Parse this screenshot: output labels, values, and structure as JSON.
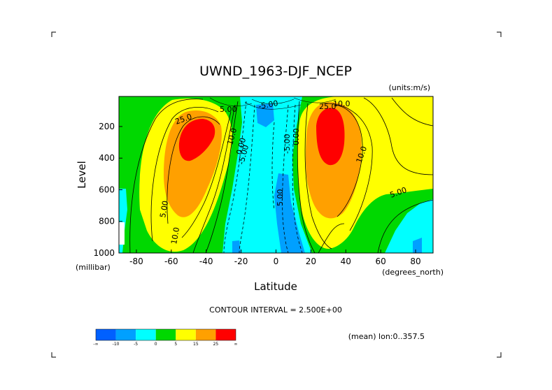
{
  "chart_data": {
    "type": "heatmap",
    "title": "UWND_1963-DJF_NCEP",
    "units": "(units:m/s)",
    "xlabel": "Latitude",
    "xunits": "(degrees_north)",
    "ylabel": "Level",
    "yunits": "(millibar)",
    "xlim": [
      -90,
      90
    ],
    "ylim": [
      1000,
      10
    ],
    "x_ticks": [
      "-80",
      "-60",
      "-40",
      "-20",
      "0",
      "20",
      "40",
      "60",
      "80"
    ],
    "y_ticks": [
      "200",
      "400",
      "600",
      "800",
      "1000"
    ],
    "contour_interval_text": "CONTOUR INTERVAL = 2.500E+00",
    "mean_text": "(mean) lon:0..357.5",
    "colorbar": {
      "tick_labels": [
        "-∞",
        "-10",
        "-5",
        "0",
        "5",
        "15",
        "25",
        "∞"
      ],
      "colors": [
        "#0060ff",
        "#00a0ff",
        "#00ffff",
        "#00d800",
        "#ffff00",
        "#ffa000",
        "#ff0000"
      ]
    },
    "contour_labels": [
      "25.0",
      "25.0",
      "10.0",
      "10.0",
      "10.0",
      "10.0",
      "5.00",
      "5.00",
      "5.00",
      "5.00",
      "0.00",
      "0.00",
      "-5.00",
      "-5.00",
      "-5.00"
    ],
    "jets": [
      {
        "lat": -50,
        "level": 250,
        "max": 28
      },
      {
        "lat": 30,
        "level": 200,
        "max": 32
      }
    ]
  }
}
